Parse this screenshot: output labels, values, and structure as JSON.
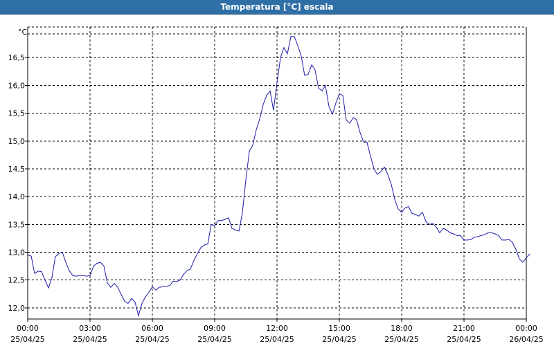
{
  "window": {
    "title": "Temperatura [°C] escala"
  },
  "colors": {
    "title_bar": "#2e6fa5",
    "line": "#1a1aaa",
    "grid": "#000000"
  },
  "chart_data": {
    "type": "line",
    "title": "Temperatura [°C] escala",
    "ylabel": "°C",
    "xlabel": "",
    "xlim_hours": [
      0,
      24
    ],
    "ylim": [
      11.8,
      17.05
    ],
    "grid": true,
    "y_ticks": [
      "12,0",
      "12,5",
      "13,0",
      "13,5",
      "14,0",
      "14,5",
      "15,0",
      "15,5",
      "16,0",
      "16,5"
    ],
    "x_ticks": [
      {
        "time": "00:00",
        "date": "25/04/25"
      },
      {
        "time": "03:00",
        "date": "25/04/25"
      },
      {
        "time": "06:00",
        "date": "25/04/25"
      },
      {
        "time": "09:00",
        "date": "25/04/25"
      },
      {
        "time": "12:00",
        "date": "25/04/25"
      },
      {
        "time": "15:00",
        "date": "25/04/25"
      },
      {
        "time": "18:00",
        "date": "25/04/25"
      },
      {
        "time": "21:00",
        "date": "25/04/25"
      },
      {
        "time": "00:00",
        "date": "26/04/25"
      }
    ],
    "series": [
      {
        "points": [
          [
            0.0,
            12.95
          ],
          [
            0.17,
            12.93
          ],
          [
            0.33,
            12.62
          ],
          [
            0.5,
            12.66
          ],
          [
            0.67,
            12.65
          ],
          [
            0.83,
            12.5
          ],
          [
            1.0,
            12.36
          ],
          [
            1.17,
            12.55
          ],
          [
            1.33,
            12.92
          ],
          [
            1.5,
            12.98
          ],
          [
            1.67,
            13.0
          ],
          [
            1.83,
            12.82
          ],
          [
            2.0,
            12.67
          ],
          [
            2.17,
            12.58
          ],
          [
            2.33,
            12.57
          ],
          [
            2.5,
            12.58
          ],
          [
            2.67,
            12.58
          ],
          [
            2.83,
            12.57
          ],
          [
            3.0,
            12.58
          ],
          [
            3.17,
            12.75
          ],
          [
            3.33,
            12.8
          ],
          [
            3.5,
            12.82
          ],
          [
            3.67,
            12.75
          ],
          [
            3.83,
            12.45
          ],
          [
            4.0,
            12.37
          ],
          [
            4.17,
            12.44
          ],
          [
            4.33,
            12.37
          ],
          [
            4.5,
            12.24
          ],
          [
            4.67,
            12.12
          ],
          [
            4.83,
            12.08
          ],
          [
            5.0,
            12.17
          ],
          [
            5.17,
            12.1
          ],
          [
            5.33,
            11.86
          ],
          [
            5.5,
            12.08
          ],
          [
            5.67,
            12.2
          ],
          [
            5.83,
            12.28
          ],
          [
            6.0,
            12.38
          ],
          [
            6.17,
            12.32
          ],
          [
            6.33,
            12.37
          ],
          [
            6.5,
            12.38
          ],
          [
            6.67,
            12.39
          ],
          [
            6.83,
            12.4
          ],
          [
            7.0,
            12.48
          ],
          [
            7.17,
            12.47
          ],
          [
            7.33,
            12.5
          ],
          [
            7.5,
            12.6
          ],
          [
            7.67,
            12.67
          ],
          [
            7.83,
            12.7
          ],
          [
            8.0,
            12.85
          ],
          [
            8.17,
            12.98
          ],
          [
            8.33,
            13.08
          ],
          [
            8.5,
            13.13
          ],
          [
            8.67,
            13.15
          ],
          [
            8.83,
            13.5
          ],
          [
            9.0,
            13.48
          ],
          [
            9.17,
            13.57
          ],
          [
            9.33,
            13.57
          ],
          [
            9.5,
            13.59
          ],
          [
            9.67,
            13.62
          ],
          [
            9.83,
            13.43
          ],
          [
            10.0,
            13.4
          ],
          [
            10.17,
            13.38
          ],
          [
            10.33,
            13.7
          ],
          [
            10.5,
            14.3
          ],
          [
            10.67,
            14.82
          ],
          [
            10.83,
            14.92
          ],
          [
            11.0,
            15.2
          ],
          [
            11.17,
            15.4
          ],
          [
            11.33,
            15.65
          ],
          [
            11.5,
            15.82
          ],
          [
            11.67,
            15.9
          ],
          [
            11.83,
            15.55
          ],
          [
            12.0,
            16.05
          ],
          [
            12.17,
            16.5
          ],
          [
            12.33,
            16.68
          ],
          [
            12.5,
            16.57
          ],
          [
            12.67,
            16.88
          ],
          [
            12.83,
            16.88
          ],
          [
            13.0,
            16.72
          ],
          [
            13.17,
            16.52
          ],
          [
            13.33,
            16.18
          ],
          [
            13.5,
            16.2
          ],
          [
            13.67,
            16.37
          ],
          [
            13.83,
            16.28
          ],
          [
            14.0,
            15.95
          ],
          [
            14.17,
            15.9
          ],
          [
            14.33,
            16.0
          ],
          [
            14.5,
            15.62
          ],
          [
            14.67,
            15.48
          ],
          [
            14.83,
            15.68
          ],
          [
            15.0,
            15.85
          ],
          [
            15.17,
            15.82
          ],
          [
            15.33,
            15.38
          ],
          [
            15.5,
            15.32
          ],
          [
            15.67,
            15.42
          ],
          [
            15.83,
            15.38
          ],
          [
            16.0,
            15.15
          ],
          [
            16.17,
            14.98
          ],
          [
            16.33,
            14.98
          ],
          [
            16.5,
            14.73
          ],
          [
            16.67,
            14.5
          ],
          [
            16.83,
            14.4
          ],
          [
            17.0,
            14.45
          ],
          [
            17.17,
            14.53
          ],
          [
            17.33,
            14.4
          ],
          [
            17.5,
            14.22
          ],
          [
            17.67,
            13.95
          ],
          [
            17.83,
            13.78
          ],
          [
            18.0,
            13.72
          ],
          [
            18.17,
            13.8
          ],
          [
            18.33,
            13.82
          ],
          [
            18.5,
            13.7
          ],
          [
            18.67,
            13.68
          ],
          [
            18.83,
            13.65
          ],
          [
            19.0,
            13.72
          ],
          [
            19.17,
            13.55
          ],
          [
            19.33,
            13.5
          ],
          [
            19.5,
            13.52
          ],
          [
            19.67,
            13.45
          ],
          [
            19.83,
            13.35
          ],
          [
            20.0,
            13.43
          ],
          [
            20.17,
            13.4
          ],
          [
            20.33,
            13.35
          ],
          [
            20.5,
            13.33
          ],
          [
            20.67,
            13.3
          ],
          [
            20.83,
            13.3
          ],
          [
            21.0,
            13.22
          ],
          [
            21.17,
            13.22
          ],
          [
            21.33,
            13.23
          ],
          [
            21.5,
            13.27
          ],
          [
            21.67,
            13.28
          ],
          [
            21.83,
            13.3
          ],
          [
            22.0,
            13.32
          ],
          [
            22.17,
            13.35
          ],
          [
            22.33,
            13.35
          ],
          [
            22.5,
            13.33
          ],
          [
            22.67,
            13.3
          ],
          [
            22.83,
            13.22
          ],
          [
            23.0,
            13.22
          ],
          [
            23.17,
            13.23
          ],
          [
            23.33,
            13.18
          ],
          [
            23.5,
            13.05
          ],
          [
            23.67,
            12.88
          ],
          [
            23.83,
            12.82
          ],
          [
            24.0,
            12.9
          ],
          [
            24.17,
            12.97
          ]
        ]
      }
    ]
  }
}
